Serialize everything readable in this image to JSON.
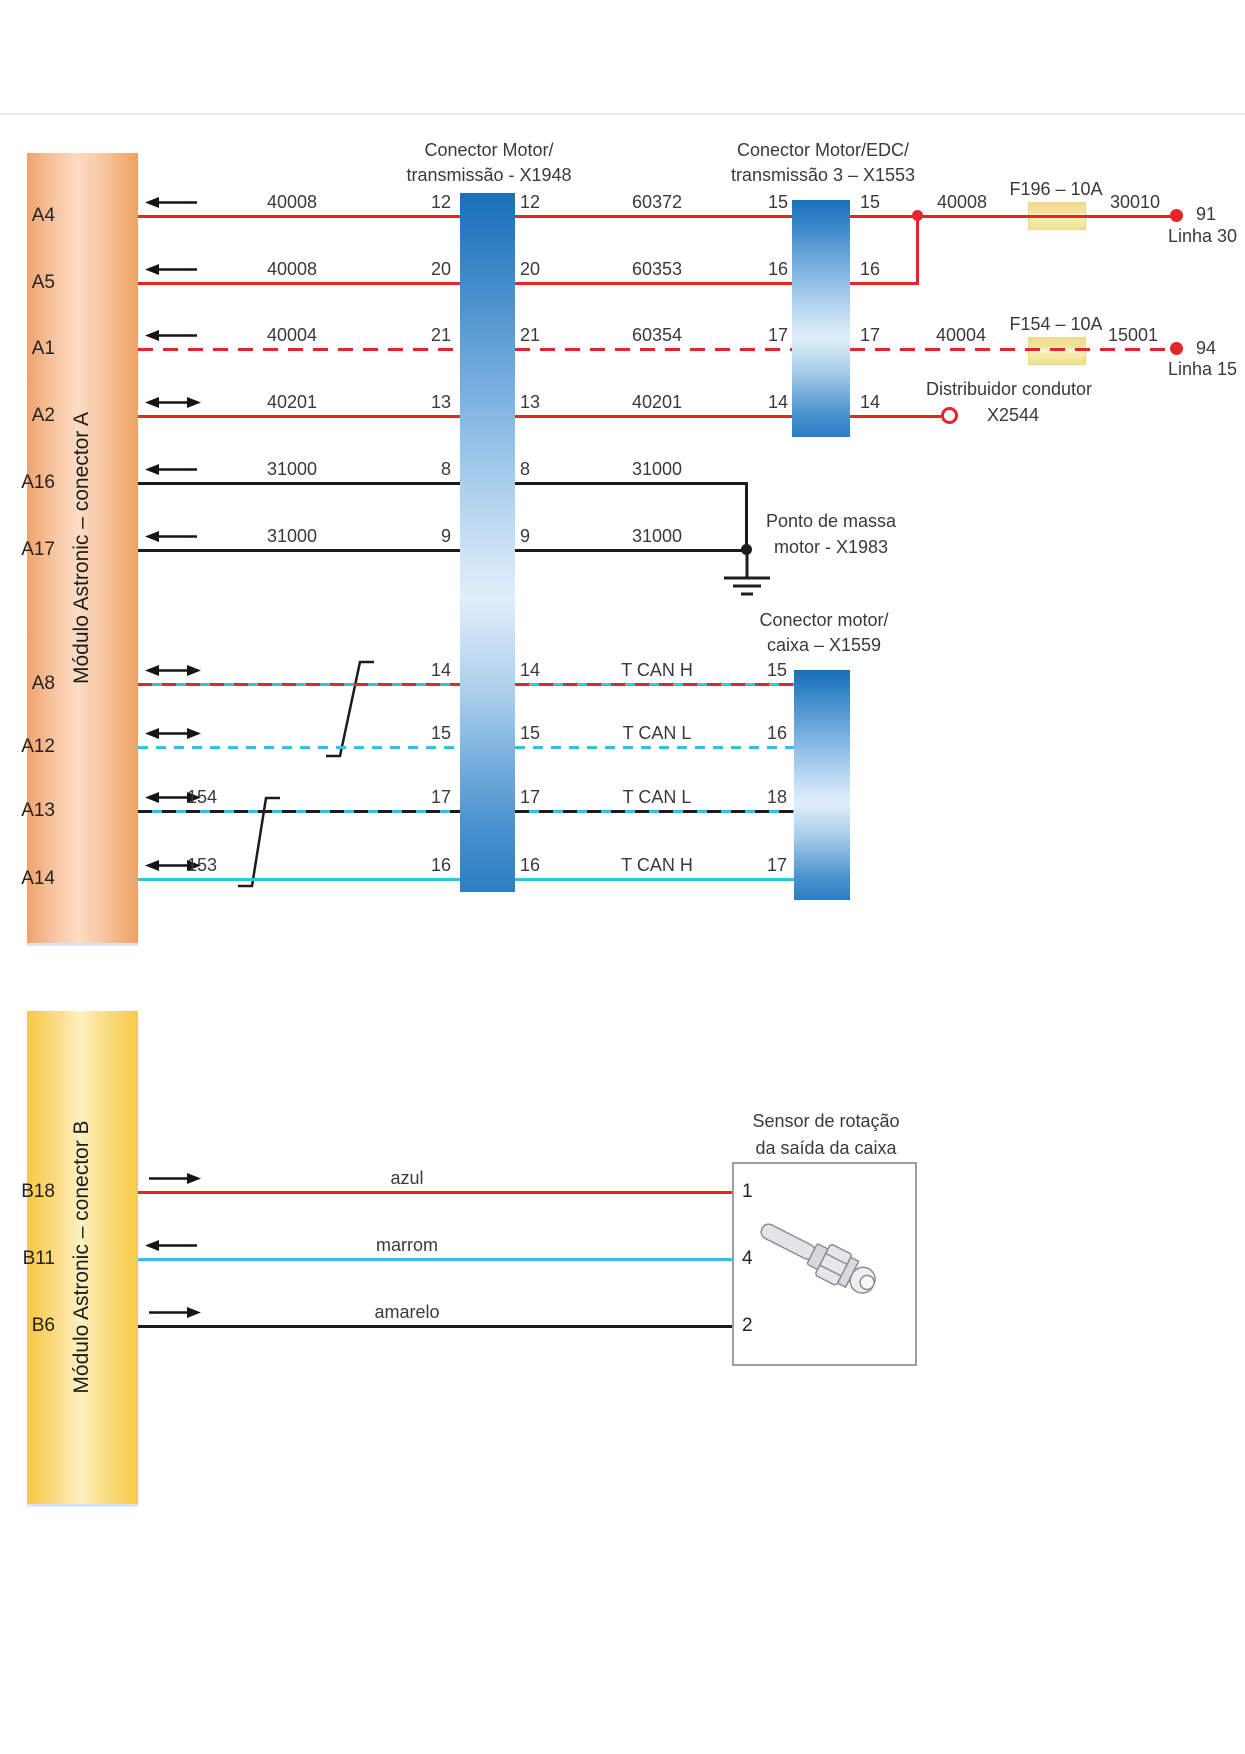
{
  "module_a": {
    "label": "Módulo Astronic – conector A"
  },
  "module_b": {
    "label": "Módulo Astronic – conector B"
  },
  "connector_x1948": {
    "title_line1": "Conector Motor/",
    "title_line2": "transmissão - X1948"
  },
  "connector_x1553": {
    "title_line1": "Conector Motor/EDC/",
    "title_line2": "transmissão 3 – X1553"
  },
  "connector_x1559": {
    "title_line1": "Conector motor/",
    "title_line2": "caixa – X1559"
  },
  "sensor": {
    "title_line1": "Sensor de rotação",
    "title_line2": "da saída da caixa"
  },
  "right_side": {
    "branch_wire_label": "40008",
    "fuse1": {
      "name": "F196 – 10A",
      "after_label": "30010",
      "terminal": "91",
      "line": "Linha 30"
    },
    "fuse2": {
      "before_label": "40004",
      "name": "F154 – 10A",
      "after_label": "15001",
      "terminal": "94",
      "line": "Linha 15"
    },
    "distributor": {
      "line1": "Distribuidor condutor",
      "line2": "X2544"
    },
    "ground": {
      "line1": "Ponto de massa",
      "line2": "motor - X1983"
    }
  },
  "colors": {
    "wire_red": "#e8232a",
    "wire_cyan": "#35c0e4",
    "wire_black": "#1c1c1a",
    "module_a_bar": "#f2a96f",
    "module_b_bar": "#f8c843",
    "connector_bar_blue": "#2d7ec3",
    "fuse_yellow": "#f0df94"
  },
  "rows_a": [
    {
      "pin": "A4",
      "arrow": "left",
      "style": "red",
      "label_left": "40008",
      "pin_x1948": "12",
      "label_mid": "60372",
      "pin_x1553": "15"
    },
    {
      "pin": "A5",
      "arrow": "left",
      "style": "red",
      "label_left": "40008",
      "pin_x1948": "20",
      "label_mid": "60353",
      "pin_x1553": "16"
    },
    {
      "pin": "A1",
      "arrow": "left",
      "style": "red-dash",
      "label_left": "40004",
      "pin_x1948": "21",
      "label_mid": "60354",
      "pin_x1553": "17"
    },
    {
      "pin": "A2",
      "arrow": "both",
      "style": "red",
      "label_left": "40201",
      "pin_x1948": "13",
      "label_mid": "40201",
      "pin_x1553": "14"
    },
    {
      "pin": "A16",
      "arrow": "left",
      "style": "black",
      "label_left": "31000",
      "pin_x1948": "8",
      "label_mid": "31000"
    },
    {
      "pin": "A17",
      "arrow": "left",
      "style": "black",
      "label_left": "31000",
      "pin_x1948": "9",
      "label_mid": "31000"
    },
    {
      "pin": "A8",
      "arrow": "both",
      "style": "can-red",
      "pin_x1948": "14",
      "label_mid": "T CAN H",
      "pin_x1559": "15"
    },
    {
      "pin": "A12",
      "arrow": "both",
      "style": "cyan-dash",
      "pin_x1948": "15",
      "label_mid": "T CAN L",
      "pin_x1559": "16"
    },
    {
      "pin": "A13",
      "arrow": "both",
      "style": "can-black",
      "label_left": "154",
      "pin_x1948": "17",
      "label_mid": "T CAN L",
      "pin_x1559": "18"
    },
    {
      "pin": "A14",
      "arrow": "both",
      "style": "cyan",
      "label_left": "153",
      "pin_x1948": "16",
      "label_mid": "T CAN H",
      "pin_x1559": "17"
    }
  ],
  "rows_b": [
    {
      "pin": "B18",
      "arrow": "right",
      "style": "red",
      "wire_label": "azul",
      "sensor_pin": "1"
    },
    {
      "pin": "B11",
      "arrow": "left",
      "style": "cyan",
      "wire_label": "marrom",
      "sensor_pin": "4"
    },
    {
      "pin": "B6",
      "arrow": "right",
      "style": "black",
      "wire_label": "amarelo",
      "sensor_pin": "2"
    }
  ]
}
